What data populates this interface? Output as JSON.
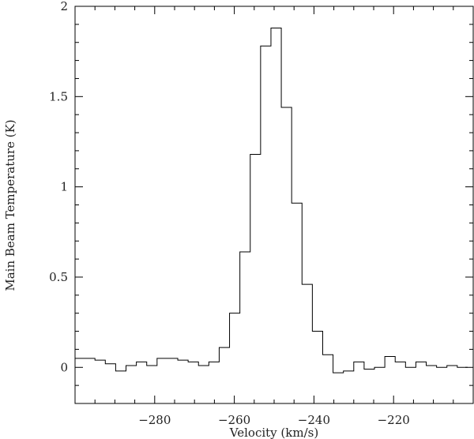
{
  "chart_data": {
    "type": "line",
    "style": "step",
    "title": "",
    "xlabel": "Velocity (km/s)",
    "ylabel": "Main Beam Temperature (K)",
    "xlim": [
      -300,
      -200
    ],
    "ylim": [
      -0.2,
      2.0
    ],
    "x_ticks": [
      -280,
      -260,
      -240,
      -220
    ],
    "x_tick_labels": [
      "−280",
      "−260",
      "−240",
      "−220"
    ],
    "y_ticks": [
      0,
      0.5,
      1,
      1.5,
      2
    ],
    "y_tick_labels": [
      "0",
      "0.5",
      "1",
      "1.5",
      "2"
    ],
    "grid": false,
    "series": [
      {
        "x": [
          -298.9,
          -296.3,
          -293.7,
          -291.1,
          -288.5,
          -285.9,
          -283.3,
          -280.7,
          -278.1,
          -275.5,
          -272.9,
          -270.3,
          -267.7,
          -265.1,
          -262.5,
          -259.9,
          -257.3,
          -254.7,
          -252.1,
          -249.5,
          -246.9,
          -244.3,
          -241.7,
          -239.1,
          -236.5,
          -233.9,
          -231.3,
          -228.7,
          -226.1,
          -223.5,
          -220.9,
          -218.3,
          -215.7,
          -213.1,
          -210.5,
          -207.9,
          -205.3,
          -202.7
        ],
        "values": [
          0.05,
          0.05,
          0.04,
          0.02,
          -0.02,
          0.01,
          0.03,
          0.01,
          0.05,
          0.05,
          0.04,
          0.03,
          0.01,
          0.03,
          0.11,
          0.3,
          0.64,
          1.18,
          1.78,
          1.88,
          1.44,
          0.91,
          0.46,
          0.2,
          0.07,
          -0.03,
          -0.02,
          0.03,
          -0.01,
          0.0,
          0.06,
          0.03,
          0.0,
          0.03,
          0.01,
          0.0,
          0.01,
          0.0
        ]
      }
    ]
  }
}
